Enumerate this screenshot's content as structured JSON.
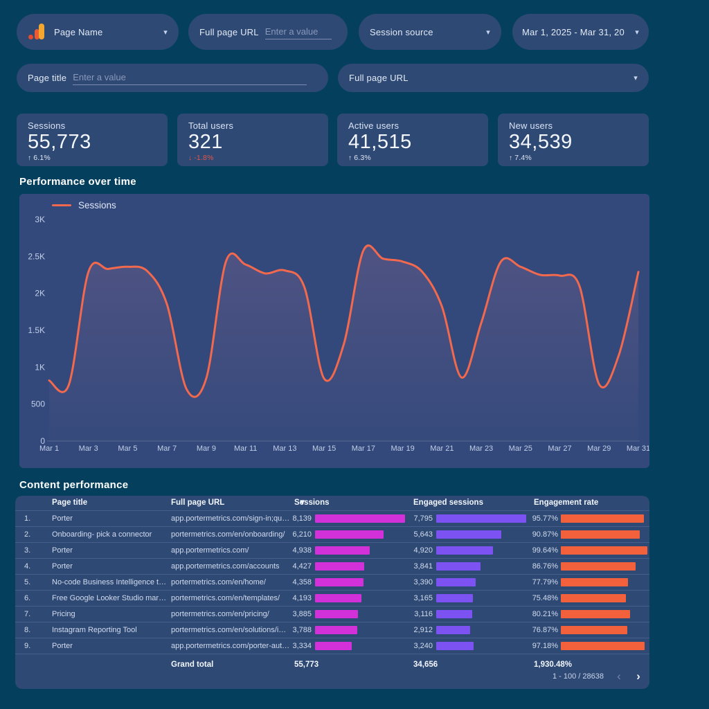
{
  "filters": {
    "page_name": {
      "label": "Page Name"
    },
    "full_page_url_input": {
      "label": "Full page URL",
      "placeholder": "Enter a value",
      "value": ""
    },
    "session_source": {
      "label": "Session source"
    },
    "date_range": {
      "label": "Mar 1, 2025 - Mar 31, 20"
    },
    "page_title_input": {
      "label": "Page title",
      "placeholder": "Enter a value",
      "value": ""
    },
    "full_page_url_dropdown": {
      "label": "Full page URL"
    }
  },
  "scorecards": [
    {
      "label": "Sessions",
      "value": "55,773",
      "delta": "6.1%",
      "direction": "up"
    },
    {
      "label": "Total users",
      "value": "321",
      "delta": "-1.8%",
      "direction": "down"
    },
    {
      "label": "Active users",
      "value": "41,515",
      "delta": "6.3%",
      "direction": "up"
    },
    {
      "label": "New users",
      "value": "34,539",
      "delta": "7.4%",
      "direction": "up"
    }
  ],
  "chart": {
    "section_title": "Performance over time",
    "legend": "Sessions"
  },
  "chart_data": {
    "type": "line",
    "title": "Performance over time",
    "x": [
      "Mar 1",
      "Mar 2",
      "Mar 3",
      "Mar 4",
      "Mar 5",
      "Mar 6",
      "Mar 7",
      "Mar 8",
      "Mar 9",
      "Mar 10",
      "Mar 11",
      "Mar 12",
      "Mar 13",
      "Mar 14",
      "Mar 15",
      "Mar 16",
      "Mar 17",
      "Mar 18",
      "Mar 19",
      "Mar 20",
      "Mar 21",
      "Mar 22",
      "Mar 23",
      "Mar 24",
      "Mar 25",
      "Mar 26",
      "Mar 27",
      "Mar 28",
      "Mar 29",
      "Mar 30",
      "Mar 31"
    ],
    "series": [
      {
        "name": "Sessions",
        "color": "#f2694e",
        "values": [
          820,
          760,
          2290,
          2330,
          2360,
          2300,
          1850,
          700,
          850,
          2430,
          2390,
          2270,
          2310,
          2080,
          845,
          1310,
          2580,
          2470,
          2430,
          2290,
          1820,
          860,
          1600,
          2430,
          2360,
          2250,
          2240,
          2100,
          770,
          1160,
          2290
        ]
      }
    ],
    "ylim": [
      0,
      3000
    ],
    "yticks": [
      0,
      500,
      1000,
      1500,
      2000,
      2500,
      3000
    ],
    "ytick_labels": [
      "0",
      "500",
      "1K",
      "1.5K",
      "2K",
      "2.5K",
      "3K"
    ],
    "x_tick_step": 2,
    "grid": false,
    "legend_position": "top-left"
  },
  "table": {
    "section_title": "Content performance",
    "columns": [
      {
        "label": "Page title"
      },
      {
        "label": "Full page URL"
      },
      {
        "label": "Sessions",
        "sortable": true
      },
      {
        "label": "Engaged sessions"
      },
      {
        "label": "Engagement rate"
      }
    ],
    "rows": [
      {
        "index": "1.",
        "page_title": "Porter",
        "url": "app.portermetrics.com/sign-in;query...",
        "sessions": "8,139",
        "sessions_value": 8139,
        "engaged": "7,795",
        "engaged_value": 7795,
        "rate": "95.77%",
        "rate_value": 95.77
      },
      {
        "index": "2.",
        "page_title": "Onboarding- pick a connector",
        "url": "portermetrics.com/en/onboarding/",
        "sessions": "6,210",
        "sessions_value": 6210,
        "engaged": "5,643",
        "engaged_value": 5643,
        "rate": "90.87%",
        "rate_value": 90.87
      },
      {
        "index": "3.",
        "page_title": "Porter",
        "url": "app.portermetrics.com/",
        "sessions": "4,938",
        "sessions_value": 4938,
        "engaged": "4,920",
        "engaged_value": 4920,
        "rate": "99.64%",
        "rate_value": 99.64
      },
      {
        "index": "4.",
        "page_title": "Porter",
        "url": "app.portermetrics.com/accounts",
        "sessions": "4,427",
        "sessions_value": 4427,
        "engaged": "3,841",
        "engaged_value": 3841,
        "rate": "86.76%",
        "rate_value": 86.76
      },
      {
        "index": "5.",
        "page_title": "No-code Business Intelligence tool | P...",
        "url": "portermetrics.com/en/home/",
        "sessions": "4,358",
        "sessions_value": 4358,
        "engaged": "3,390",
        "engaged_value": 3390,
        "rate": "77.79%",
        "rate_value": 77.79
      },
      {
        "index": "6.",
        "page_title": "Free Google Looker Studio marketing...",
        "url": "portermetrics.com/en/templates/",
        "sessions": "4,193",
        "sessions_value": 4193,
        "engaged": "3,165",
        "engaged_value": 3165,
        "rate": "75.48%",
        "rate_value": 75.48
      },
      {
        "index": "7.",
        "page_title": "Pricing",
        "url": "portermetrics.com/en/pricing/",
        "sessions": "3,885",
        "sessions_value": 3885,
        "engaged": "3,116",
        "engaged_value": 3116,
        "rate": "80.21%",
        "rate_value": 80.21
      },
      {
        "index": "8.",
        "page_title": "Instagram Reporting Tool",
        "url": "portermetrics.com/en/solutions/insta...",
        "sessions": "3,788",
        "sessions_value": 3788,
        "engaged": "2,912",
        "engaged_value": 2912,
        "rate": "76.87%",
        "rate_value": 76.87
      },
      {
        "index": "9.",
        "page_title": "Porter",
        "url": "app.portermetrics.com/porter-auth/l...",
        "sessions": "3,334",
        "sessions_value": 3334,
        "engaged": "3,240",
        "engaged_value": 3240,
        "rate": "97.18%",
        "rate_value": 97.18
      }
    ],
    "grand_total": {
      "label": "Grand total",
      "sessions": "55,773",
      "engaged": "34,656",
      "rate": "1,930.48%"
    },
    "pagination": {
      "range": "1 - 100 / 28638"
    }
  },
  "colors": {
    "background": "#04405e",
    "card": "#2e4973",
    "chart_card": "#33497b",
    "line": "#f2694e",
    "sessions_bar": "#d230d8",
    "engaged_bar": "#7c52f2",
    "rate_bar": "#f2613c",
    "negative": "#e2574b"
  }
}
